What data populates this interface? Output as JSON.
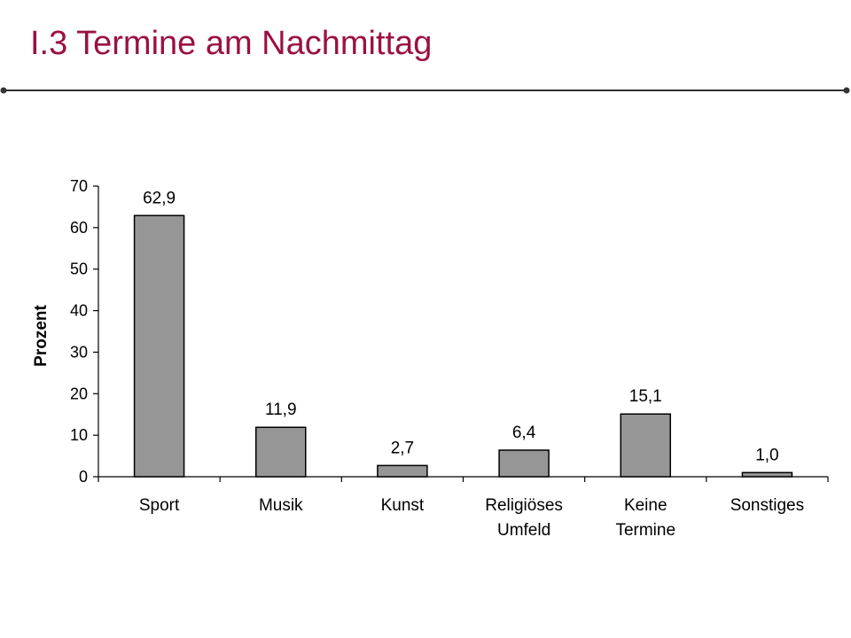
{
  "slide": {
    "title": "I.3 Termine am Nachmittag"
  },
  "colors": {
    "title": "#9b1144",
    "bar_fill": "#969696",
    "bar_stroke": "#000000",
    "divider": "#333333"
  },
  "chart_data": {
    "type": "bar",
    "categories": [
      [
        "Sport"
      ],
      [
        "Musik"
      ],
      [
        "Kunst"
      ],
      [
        "Religiöses",
        "Umfeld"
      ],
      [
        "Keine",
        "Termine"
      ],
      [
        "Sonstiges"
      ]
    ],
    "values": [
      62.9,
      11.9,
      2.7,
      6.4,
      15.1,
      1.0
    ],
    "data_labels": [
      "62,9",
      "11,9",
      "2,7",
      "6,4",
      "15,1",
      "1,0"
    ],
    "ylabel": "Prozent",
    "ylim": [
      0,
      70
    ],
    "yticks": [
      0,
      10,
      20,
      30,
      40,
      50,
      60,
      70
    ],
    "grid": false,
    "legend": "none"
  }
}
